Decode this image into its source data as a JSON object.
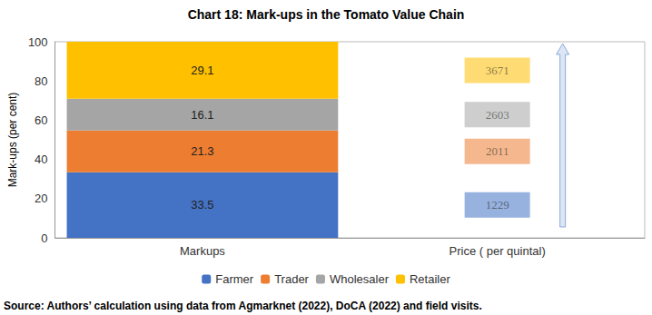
{
  "chart_data": {
    "type": "bar",
    "title": "Chart 18: Mark-ups in the Tomato Value Chain",
    "y_label": "Mark-ups (per cent)",
    "categories": [
      "Markups",
      "Price ( per quintal)"
    ],
    "stacked": true,
    "data_labels": true,
    "legend": "bottom",
    "grid": false,
    "ylim": [
      0,
      100
    ],
    "yticks": [
      0,
      20,
      40,
      60,
      80,
      100
    ],
    "series": [
      {
        "name": "Farmer",
        "color": "#4472c4",
        "values": [
          33.5,
          null
        ],
        "price": 1229
      },
      {
        "name": "Trader",
        "color": "#ed7d31",
        "values": [
          21.3,
          null
        ],
        "price": 2011
      },
      {
        "name": "Wholesaler",
        "color": "#a5a5a5",
        "values": [
          16.1,
          null
        ],
        "price": 2603
      },
      {
        "name": "Retailer",
        "color": "#ffc000",
        "values": [
          29.1,
          null
        ],
        "price": 3671
      }
    ],
    "source": "Source: Authors’ calculation using data from Agmarknet (2022), DoCA (2022) and field visits."
  }
}
